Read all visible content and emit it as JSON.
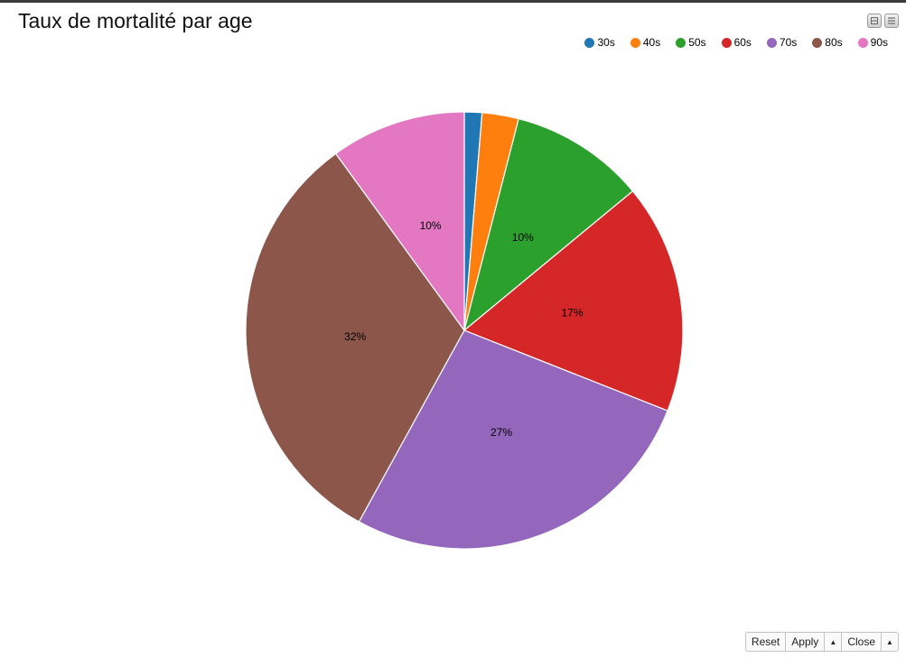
{
  "window": {
    "title": "Taux de mortalité par age",
    "controls": [
      {
        "name": "minimize-icon"
      },
      {
        "name": "menu-icon"
      }
    ]
  },
  "chart_data": {
    "type": "pie",
    "title": "Taux de mortalité par age",
    "legend_placement": "top-right",
    "categories": [
      "30s",
      "40s",
      "50s",
      "60s",
      "70s",
      "80s",
      "90s"
    ],
    "values": [
      1.3,
      2.7,
      10,
      17,
      27,
      32,
      10
    ],
    "labels": [
      "",
      "",
      "10%",
      "17%",
      "27%",
      "32%",
      "10%"
    ],
    "colors": [
      "#1f77b4",
      "#ff7f0e",
      "#2ca02c",
      "#d62728",
      "#9467bd",
      "#8c564b",
      "#e377c2"
    ]
  },
  "toolbar": {
    "reset_label": "Reset",
    "apply_label": "Apply",
    "close_label": "Close",
    "arrow_glyph": "▲"
  }
}
